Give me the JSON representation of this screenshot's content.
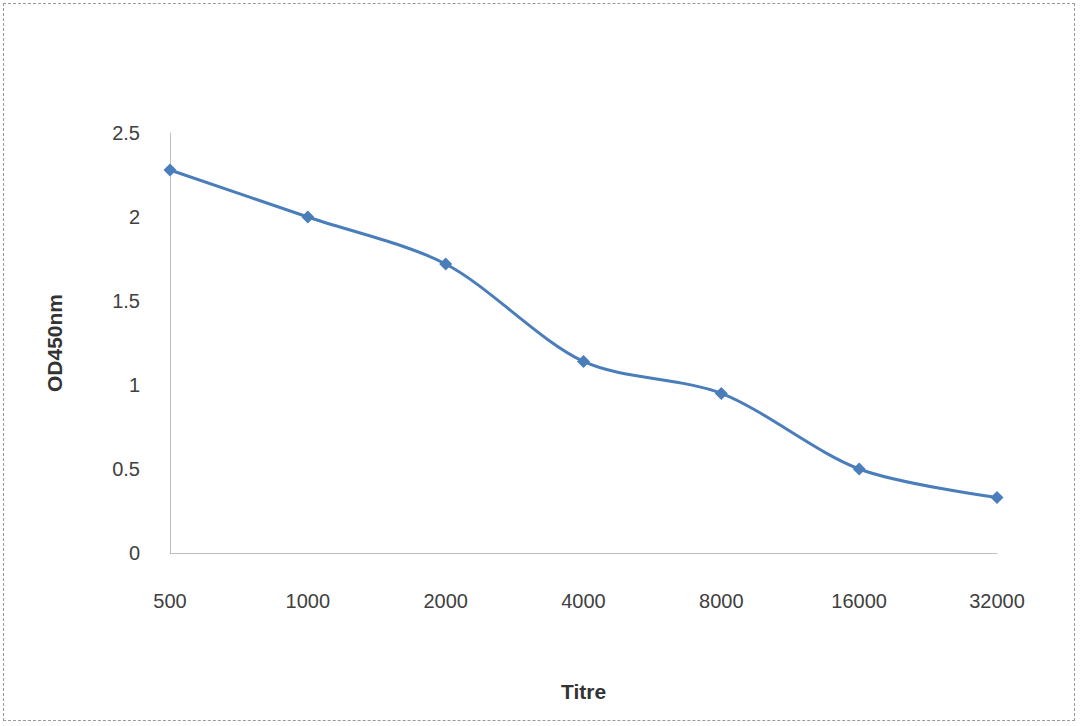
{
  "chart_data": {
    "type": "line",
    "x_label": "Titre",
    "y_label": "OD450nm",
    "categories": [
      "500",
      "1000",
      "2000",
      "4000",
      "8000",
      "16000",
      "32000"
    ],
    "values": [
      2.28,
      2.0,
      1.72,
      1.14,
      0.95,
      0.5,
      0.33
    ],
    "color": "#4a7ebb",
    "marker": "diamond",
    "line_style": "solid",
    "ylim": [
      0,
      2.5
    ],
    "yticks": [
      0,
      0.5,
      1,
      1.5,
      2,
      2.5
    ],
    "grid": false
  }
}
